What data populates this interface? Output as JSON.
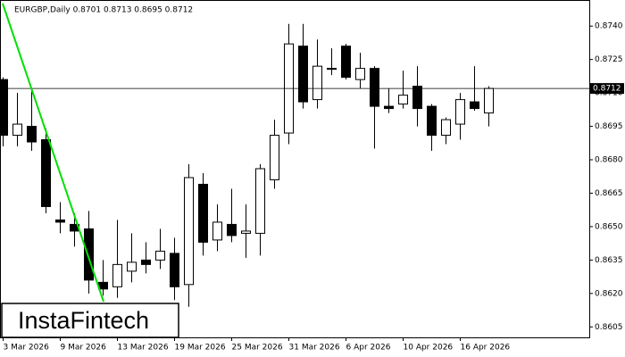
{
  "chart_data": {
    "type": "candlestick",
    "title": "EURGBP,Daily  0.8701 0.8713 0.8695 0.8712",
    "categories": [
      "3 Mar 2026",
      null,
      null,
      null,
      "9 Mar 2026",
      null,
      null,
      null,
      "13 Mar 2026",
      null,
      null,
      null,
      "19 Mar 2026",
      null,
      null,
      null,
      "25 Mar 2026",
      null,
      null,
      null,
      "31 Mar 2026",
      null,
      null,
      null,
      "6 Apr 2026",
      null,
      null,
      null,
      "10 Apr 2026",
      null,
      null,
      null,
      "16 Apr 2026",
      null,
      null
    ],
    "open": [
      0.8716,
      0.8691,
      0.8695,
      0.8689,
      0.8653,
      0.8651,
      0.8649,
      0.8625,
      0.8623,
      0.863,
      0.8635,
      0.8635,
      0.8638,
      0.8624,
      0.8669,
      0.8644,
      0.8651,
      0.8647,
      0.8647,
      0.8671,
      0.8692,
      0.8731,
      0.8707,
      0.8721,
      0.8731,
      0.8716,
      0.8721,
      0.8704,
      0.8705,
      0.8713,
      0.8704,
      0.8691,
      0.8696,
      0.8706,
      0.8701
    ],
    "high": [
      0.8717,
      0.871,
      0.8712,
      0.8694,
      0.8661,
      0.8656,
      0.8657,
      0.8635,
      0.8653,
      0.8647,
      0.8643,
      0.8649,
      0.8645,
      0.8678,
      0.8674,
      0.866,
      0.8667,
      0.866,
      0.8678,
      0.8698,
      0.8741,
      0.8741,
      0.8734,
      0.873,
      0.8732,
      0.8728,
      0.8722,
      0.8712,
      0.872,
      0.8722,
      0.8705,
      0.8699,
      0.871,
      0.8722,
      0.8713
    ],
    "low": [
      0.8686,
      0.8686,
      0.8684,
      0.8656,
      0.8647,
      0.8641,
      0.862,
      0.8619,
      0.8618,
      0.8625,
      0.8629,
      0.8631,
      0.8617,
      0.8614,
      0.8637,
      0.8639,
      0.8643,
      0.8636,
      0.8637,
      0.8667,
      0.8687,
      0.8703,
      0.8703,
      0.8718,
      0.8716,
      0.8712,
      0.8685,
      0.8701,
      0.8703,
      0.8695,
      0.8684,
      0.8687,
      0.8689,
      0.8702,
      0.8695
    ],
    "close": [
      0.8691,
      0.8696,
      0.8688,
      0.8659,
      0.8652,
      0.8648,
      0.8626,
      0.8622,
      0.8633,
      0.8634,
      0.8633,
      0.8639,
      0.8623,
      0.8672,
      0.8643,
      0.8652,
      0.8646,
      0.8648,
      0.8676,
      0.8691,
      0.8732,
      0.8706,
      0.8722,
      0.8721,
      0.8717,
      0.8721,
      0.8704,
      0.8703,
      0.8709,
      0.8703,
      0.8691,
      0.8698,
      0.8707,
      0.8703,
      0.8712
    ],
    "up_color": "#ffffff",
    "down_color": "#000000",
    "ylim": [
      0.86003,
      0.87517
    ],
    "yticks": [
      {
        "value": 0.874,
        "label": "0.8740"
      },
      {
        "value": 0.8725,
        "label": "0.8725"
      },
      {
        "value": 0.871,
        "label": "0.8710"
      },
      {
        "value": 0.8695,
        "label": "0.8695"
      },
      {
        "value": 0.868,
        "label": "0.8680"
      },
      {
        "value": 0.8665,
        "label": "0.8665"
      },
      {
        "value": 0.865,
        "label": "0.8650"
      },
      {
        "value": 0.8635,
        "label": "0.8635"
      },
      {
        "value": 0.862,
        "label": "0.8620"
      },
      {
        "value": 0.8605,
        "label": "0.8605"
      }
    ],
    "current_price": 0.8712
  },
  "logo": "InstaFintech"
}
